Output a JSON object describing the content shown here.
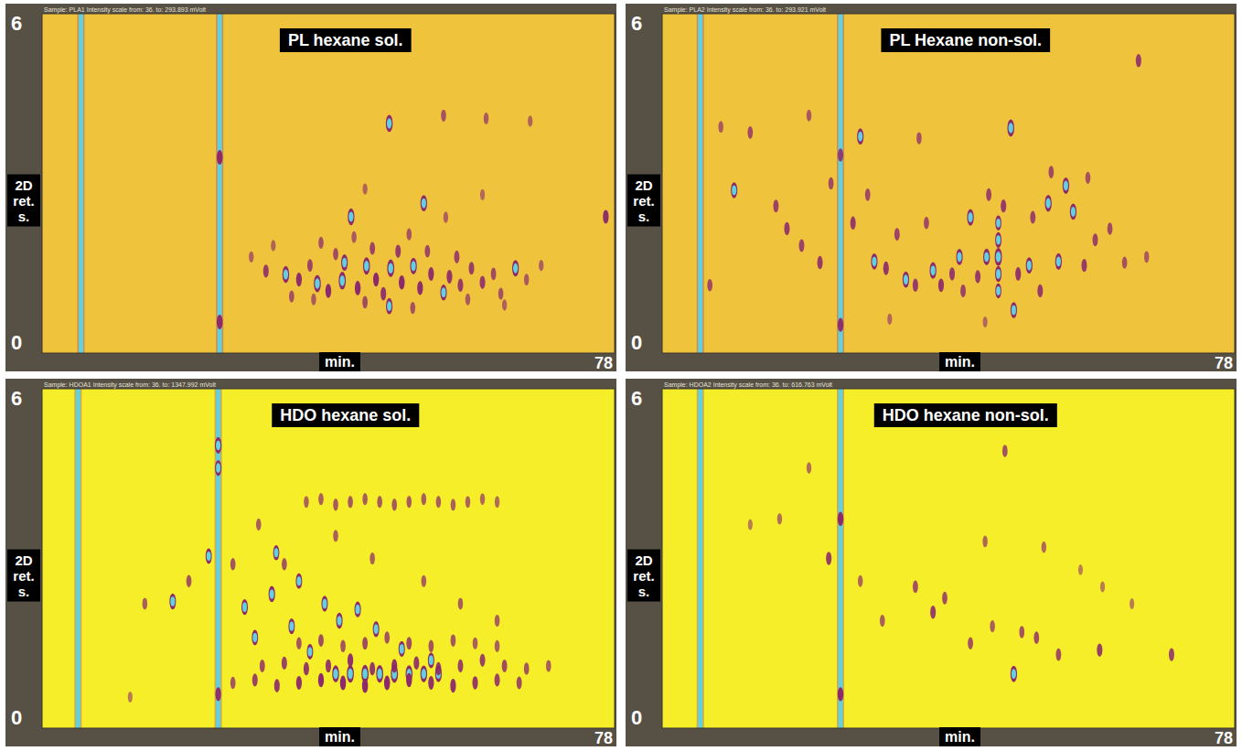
{
  "chart_data": [
    {
      "type": "scatter",
      "title": "PL hexane sol.",
      "subtitle": "Sample: PLA1   Intensity scale from: 36. to: 293.893 mVolt",
      "x_label": "min.",
      "y_label": "2D ret. s.",
      "xlim": [
        0,
        78
      ],
      "ylim": [
        0,
        6
      ],
      "xticks": [
        78
      ],
      "yticks": [
        0,
        6
      ],
      "zlim": [
        36,
        293.893
      ],
      "color": "#efc33c",
      "x_streaks": [
        5.3,
        24.2
      ],
      "x": [
        47.3,
        42.1,
        52.0,
        33.2,
        37.5,
        40.9,
        44.2,
        47.5,
        50.6,
        41.2,
        64.5,
        54.7,
        47.3,
        76.8,
        54.7,
        60.5,
        30.5,
        35.0,
        36.5,
        39.0,
        43.0,
        45.5,
        46.5,
        49.0,
        51.5,
        53.0,
        55.5,
        57.0,
        58.5,
        60.0,
        61.5,
        56.5,
        52.5,
        48.5,
        45.0,
        40.0,
        38.0,
        42.5,
        50.0,
        62.5,
        66.0,
        68.0,
        34.0,
        37.0,
        44.0,
        50.5,
        58.0,
        63.0,
        28.5,
        31.5,
        55.0,
        44.0,
        60.0,
        66.5,
        24.2,
        24.2
      ],
      "values": [
        4.06,
        2.41,
        2.65,
        1.39,
        1.23,
        1.28,
        1.54,
        1.5,
        1.54,
        1.6,
        1.5,
        1.07,
        0.83,
        2.41,
        4.2,
        4.15,
        1.45,
        1.3,
        1.55,
        1.1,
        1.15,
        1.3,
        1.05,
        1.25,
        1.15,
        1.4,
        1.35,
        1.2,
        1.5,
        1.25,
        1.4,
        1.7,
        1.8,
        1.8,
        1.85,
        1.75,
        1.95,
        2.05,
        2.1,
        1.05,
        1.3,
        1.55,
        1.0,
        0.95,
        0.9,
        0.8,
        0.95,
        0.85,
        1.7,
        1.9,
        2.4,
        2.9,
        2.8,
        4.1,
        3.46,
        0.55
      ],
      "intensity": [
        260,
        250,
        240,
        255,
        270,
        280,
        265,
        275,
        250,
        240,
        245,
        230,
        235,
        170,
        120,
        110,
        150,
        170,
        140,
        175,
        180,
        175,
        160,
        180,
        170,
        165,
        160,
        150,
        145,
        150,
        130,
        140,
        135,
        150,
        140,
        130,
        120,
        110,
        115,
        120,
        110,
        100,
        120,
        110,
        130,
        120,
        110,
        100,
        100,
        95,
        100,
        95,
        90,
        95,
        190,
        190
      ]
    },
    {
      "type": "scatter",
      "title": "PL Hexane non-sol.",
      "subtitle": "Sample: PLA2   Intensity scale from: 36. to: 293.921 mVolt",
      "x_label": "min.",
      "y_label": "2D ret. s.",
      "xlim": [
        0,
        78
      ],
      "ylim": [
        0,
        6
      ],
      "xticks": [
        78
      ],
      "yticks": [
        0,
        6
      ],
      "zlim": [
        36,
        293.921
      ],
      "color": "#efc33c",
      "x_streaks": [
        5.2,
        24.3
      ],
      "x": [
        47.5,
        42.0,
        52.6,
        55.0,
        45.8,
        40.5,
        44.2,
        54.0,
        28.9,
        33.2,
        36.9,
        47.9,
        9.8,
        27.0,
        56.0,
        50.0,
        45.8,
        45.8,
        45.8,
        45.8,
        64.9,
        12.0,
        15.5,
        17.0,
        19.0,
        21.5,
        23.0,
        26.0,
        28.0,
        30.5,
        32.0,
        34.5,
        36.0,
        38.0,
        39.5,
        41.0,
        43.0,
        44.5,
        46.5,
        48.5,
        50.5,
        51.5,
        53.0,
        57.5,
        59.0,
        61.0,
        63.0,
        66.0,
        58.0,
        35.0,
        20.0,
        8.0,
        6.5,
        24.3,
        24.3,
        31.0,
        44.0
      ],
      "values": [
        3.98,
        2.4,
        2.65,
        2.96,
        1.7,
        1.7,
        1.7,
        1.62,
        1.62,
        1.3,
        1.46,
        0.76,
        2.88,
        3.83,
        2.5,
        1.55,
        1.1,
        1.4,
        2.0,
        2.3,
        5.17,
        3.9,
        2.6,
        2.2,
        1.9,
        1.6,
        3.0,
        2.3,
        2.8,
        1.5,
        2.1,
        1.2,
        2.3,
        1.2,
        1.4,
        1.1,
        1.35,
        2.8,
        2.6,
        1.4,
        2.4,
        1.1,
        3.2,
        1.55,
        2.0,
        2.2,
        1.6,
        1.7,
        3.1,
        3.8,
        4.2,
        4.0,
        1.2,
        3.5,
        0.5,
        0.6,
        0.55
      ],
      "intensity": [
        260,
        250,
        255,
        245,
        290,
        240,
        250,
        245,
        235,
        240,
        250,
        230,
        230,
        235,
        240,
        240,
        200,
        230,
        220,
        200,
        150,
        130,
        140,
        150,
        140,
        150,
        130,
        150,
        130,
        160,
        140,
        150,
        130,
        160,
        150,
        140,
        150,
        140,
        150,
        160,
        140,
        150,
        130,
        150,
        140,
        130,
        120,
        110,
        120,
        120,
        110,
        110,
        130,
        150,
        170,
        90,
        90
      ]
    },
    {
      "type": "scatter",
      "title": "HDO hexane sol.",
      "subtitle": "Sample: HDOA1   Intensity scale from: 36. to: 1347.992 mVolt",
      "x_label": "min.",
      "y_label": "2D ret. s.",
      "xlim": [
        0,
        78
      ],
      "ylim": [
        0,
        6
      ],
      "xticks": [
        78
      ],
      "yticks": [
        0,
        6
      ],
      "zlim": [
        36,
        1347.992
      ],
      "color": "#f7ee2a",
      "x_streaks": [
        4.9,
        24.0
      ],
      "x": [
        17.8,
        22.7,
        31.9,
        27.6,
        31.3,
        24.0,
        24.0,
        35.0,
        38.5,
        40.5,
        43.0,
        45.5,
        34.0,
        29.0,
        40.0,
        42.0,
        44.0,
        46.0,
        48.0,
        50.0,
        52.0,
        54.0,
        49.0,
        53.0,
        36.5,
        36,
        38,
        40,
        42,
        44,
        46,
        48,
        50,
        52,
        54,
        56,
        58,
        60,
        62,
        30,
        33,
        36,
        39,
        42,
        45,
        48,
        51,
        54,
        57,
        60,
        63,
        66,
        69,
        26,
        29,
        32,
        35,
        38,
        41,
        44,
        47,
        50,
        53,
        56,
        59,
        62,
        65,
        35,
        38,
        41,
        44,
        47,
        50,
        53,
        56,
        59,
        62,
        20.0,
        14.0,
        26.0,
        29.5,
        33.0,
        40.0,
        45.0,
        52.0,
        57.0,
        62.0,
        24.0,
        12.0
      ],
      "values": [
        2.24,
        3.04,
        3.1,
        2.14,
        2.37,
        5.0,
        4.6,
        2.6,
        2.2,
        1.9,
        2.1,
        1.75,
        1.8,
        1.6,
        0.96,
        0.96,
        0.96,
        0.96,
        0.96,
        0.96,
        0.96,
        0.96,
        1.4,
        1.2,
        1.35,
        4.0,
        4.05,
        3.95,
        4.0,
        4.05,
        4.0,
        3.95,
        4.0,
        4.05,
        4.0,
        3.95,
        4.0,
        4.05,
        4.0,
        1.1,
        1.15,
        1.05,
        1.1,
        1.2,
        1.05,
        1.1,
        1.15,
        1.05,
        1.1,
        1.2,
        1.1,
        1.05,
        1.1,
        0.8,
        0.85,
        0.75,
        0.8,
        0.85,
        0.8,
        0.75,
        0.8,
        0.85,
        0.8,
        0.75,
        0.8,
        0.85,
        0.8,
        1.5,
        1.55,
        1.45,
        1.5,
        1.6,
        1.5,
        1.45,
        1.55,
        1.5,
        1.45,
        2.6,
        2.2,
        2.9,
        3.6,
        2.9,
        3.4,
        3.0,
        2.6,
        2.2,
        1.9,
        0.6,
        0.55
      ],
      "intensity": [
        1000,
        950,
        900,
        1000,
        1050,
        1100,
        1000,
        950,
        1000,
        1050,
        1000,
        1000,
        980,
        950,
        1200,
        1250,
        1300,
        1250,
        1300,
        1200,
        1150,
        1100,
        1000,
        1000,
        950,
        420,
        450,
        470,
        480,
        460,
        470,
        480,
        470,
        460,
        450,
        440,
        420,
        400,
        380,
        550,
        600,
        650,
        650,
        700,
        650,
        700,
        650,
        650,
        600,
        600,
        550,
        500,
        450,
        500,
        600,
        650,
        700,
        750,
        800,
        800,
        800,
        750,
        700,
        700,
        650,
        600,
        550,
        500,
        550,
        500,
        550,
        500,
        550,
        500,
        500,
        450,
        450,
        500,
        450,
        500,
        450,
        500,
        450,
        450,
        450,
        450,
        450,
        700,
        300
      ]
    },
    {
      "type": "scatter",
      "title": "HDO hexane non-sol.",
      "subtitle": "Sample: HDOA2   Intensity scale from: 36. to: 616.763 mVolt",
      "x_label": "min.",
      "y_label": "2D ret. s.",
      "xlim": [
        0,
        78
      ],
      "ylim": [
        0,
        6
      ],
      "xticks": [
        78
      ],
      "yticks": [
        0,
        6
      ],
      "zlim": [
        36,
        616.763
      ],
      "color": "#f7ee2a",
      "x_streaks": [
        5.2,
        24.3
      ],
      "x": [
        47.9,
        24.3,
        24.3,
        22.7,
        36.9,
        38.5,
        34.5,
        46.7,
        59.6,
        69.4,
        54.0,
        42.0,
        49.0,
        51.0,
        45.0,
        30.0,
        27.0,
        16.0,
        44.0,
        52.0,
        20.0,
        12.0,
        60.0,
        64.0,
        57.0
      ],
      "values": [
        0.96,
        3.7,
        0.6,
        3.0,
        2.05,
        2.3,
        2.5,
        4.9,
        1.38,
        1.3,
        1.3,
        1.5,
        1.7,
        1.6,
        1.8,
        1.9,
        2.6,
        3.7,
        3.3,
        3.2,
        4.6,
        3.6,
        2.5,
        2.2,
        2.8
      ],
      "intensity": [
        500,
        350,
        350,
        300,
        300,
        260,
        250,
        250,
        300,
        280,
        260,
        250,
        240,
        260,
        220,
        220,
        200,
        180,
        200,
        190,
        180,
        150,
        150,
        150,
        140
      ]
    }
  ]
}
